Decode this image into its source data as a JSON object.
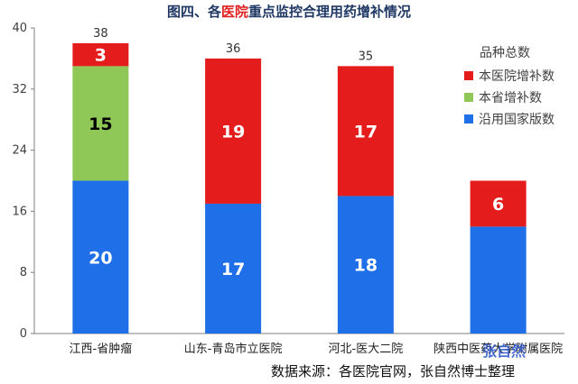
{
  "title": {
    "prefix": "图四、各",
    "highlight": "医院",
    "suffix": "重点监控合理用药增补情况"
  },
  "source_note": "数据来源：各医院官网，张自然博士整理",
  "watermark": "张自然",
  "colors": {
    "national": "#1f6fe8",
    "province": "#8fc857",
    "hospital": "#e51c1c",
    "axis": "#7f7f7f",
    "gridline": "#bfbfbf"
  },
  "chart_data": {
    "type": "bar",
    "stacked": true,
    "categories": [
      "江西-省肿瘤",
      "山东-青岛市立医院",
      "河北-医大二院",
      "陕西中医药大学附属医院"
    ],
    "series": [
      {
        "name": "沿用国家版数",
        "values": [
          20,
          17,
          18,
          14
        ],
        "data_labels": [
          "20",
          "17",
          "18",
          ""
        ]
      },
      {
        "name": "本省增补数",
        "values": [
          15,
          0,
          0,
          0
        ],
        "data_labels": [
          "15",
          "",
          "",
          ""
        ]
      },
      {
        "name": "本医院增补数",
        "values": [
          3,
          19,
          17,
          6
        ],
        "data_labels": [
          "3",
          "19",
          "17",
          "6"
        ]
      }
    ],
    "totals": [
      "38",
      "36",
      "35",
      ""
    ],
    "ylim": [
      0,
      40
    ],
    "yticks": [
      "0",
      "8",
      "16",
      "24",
      "32",
      "40"
    ],
    "legend": {
      "title": "品种总数",
      "position": "top-right",
      "items": [
        "本医院增补数",
        "本省增补数",
        "沿用国家版数"
      ]
    },
    "grid": false
  }
}
